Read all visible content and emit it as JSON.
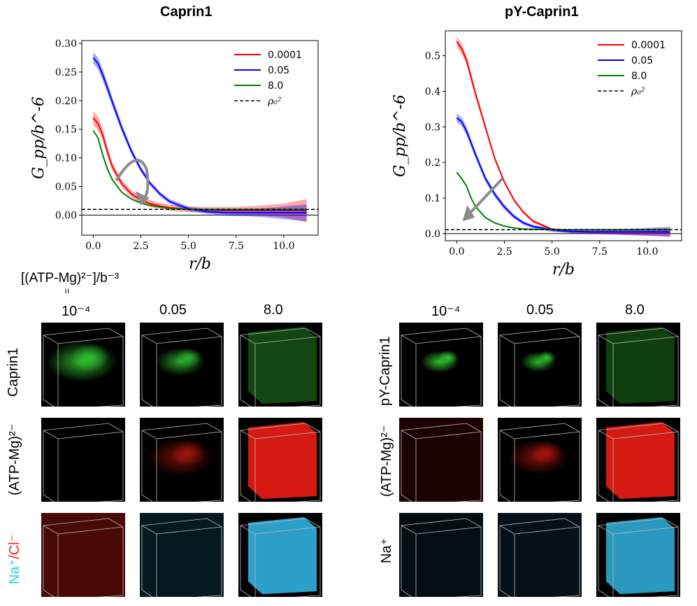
{
  "chart_data": [
    {
      "type": "line",
      "title": "Caprin1",
      "xlabel": "r/b",
      "ylabel": "G_pp/b^-6",
      "xlim": [
        -0.6,
        11.8
      ],
      "ylim": [
        -0.035,
        0.305
      ],
      "xticks": [
        "0.0",
        "2.5",
        "5.0",
        "7.5",
        "10.0"
      ],
      "xtick_values": [
        0,
        2.5,
        5,
        7.5,
        10
      ],
      "yticks": [
        "0.00",
        "0.05",
        "0.10",
        "0.15",
        "0.20",
        "0.25",
        "0.30"
      ],
      "ytick_values": [
        0,
        0.05,
        0.1,
        0.15,
        0.2,
        0.25,
        0.3
      ],
      "series": [
        {
          "name": "0.0001",
          "color": "#ff0000",
          "x": [
            0,
            0.25,
            0.5,
            0.75,
            1,
            1.5,
            2,
            2.5,
            3,
            3.5,
            4,
            5,
            6,
            7,
            8,
            9,
            10,
            11.2
          ],
          "y": [
            0.17,
            0.16,
            0.14,
            0.11,
            0.085,
            0.055,
            0.037,
            0.026,
            0.02,
            0.016,
            0.013,
            0.01,
            0.009,
            0.008,
            0.008,
            0.008,
            0.008,
            0.008
          ],
          "band": [
            0.012,
            0.012,
            0.01,
            0.008,
            0.007,
            0.006,
            0.006,
            0.006,
            0.006,
            0.005,
            0.005,
            0.005,
            0.005,
            0.006,
            0.007,
            0.009,
            0.012,
            0.02
          ]
        },
        {
          "name": "0.05",
          "color": "#0000ff",
          "x": [
            0,
            0.25,
            0.5,
            0.75,
            1,
            1.5,
            2,
            2.5,
            3,
            3.5,
            4,
            5,
            6,
            7,
            8,
            9,
            10,
            11.2
          ],
          "y": [
            0.275,
            0.265,
            0.245,
            0.222,
            0.198,
            0.152,
            0.112,
            0.08,
            0.055,
            0.037,
            0.024,
            0.011,
            0.006,
            0.004,
            0.004,
            0.004,
            0.004,
            0.004
          ],
          "band": [
            0.01,
            0.01,
            0.01,
            0.009,
            0.008,
            0.007,
            0.006,
            0.005,
            0.004,
            0.004,
            0.004,
            0.004,
            0.004,
            0.005,
            0.006,
            0.008,
            0.011,
            0.015
          ]
        },
        {
          "name": "8.0",
          "color": "#008000",
          "x": [
            0,
            0.25,
            0.5,
            0.75,
            1,
            1.5,
            2,
            2.5,
            3,
            3.5,
            4,
            5,
            6,
            7,
            8,
            9,
            10,
            11.2
          ],
          "y": [
            0.148,
            0.135,
            0.105,
            0.08,
            0.062,
            0.04,
            0.028,
            0.021,
            0.017,
            0.014,
            0.012,
            0.01,
            0.01,
            0.01,
            0.01,
            0.01,
            0.01,
            0.01
          ],
          "band": [
            0,
            0,
            0,
            0,
            0,
            0,
            0,
            0,
            0,
            0,
            0,
            0,
            0,
            0,
            0,
            0,
            0,
            0
          ]
        }
      ],
      "reference_line": {
        "name": "ρ₀²",
        "y": 0.01,
        "style": "dashed",
        "color": "#000000"
      },
      "zero_line": 0,
      "legend": {
        "position": "top-right",
        "labels": [
          "0.0001",
          "0.05",
          "8.0",
          "ρ₀²"
        ]
      },
      "annotation": "grey curved arrow (non-monotonic trend)"
    },
    {
      "type": "line",
      "title": "pY-Caprin1",
      "xlabel": "r/b",
      "ylabel": "G_pp/b^-6",
      "xlim": [
        -0.6,
        11.8
      ],
      "ylim": [
        -0.02,
        0.57
      ],
      "xticks": [
        "0.0",
        "2.5",
        "5.0",
        "7.5",
        "10.0"
      ],
      "xtick_values": [
        0,
        2.5,
        5,
        7.5,
        10
      ],
      "yticks": [
        "0.0",
        "0.1",
        "0.2",
        "0.3",
        "0.4",
        "0.5"
      ],
      "ytick_values": [
        0,
        0.1,
        0.2,
        0.3,
        0.4,
        0.5
      ],
      "series": [
        {
          "name": "0.0001",
          "color": "#ff0000",
          "x": [
            0,
            0.25,
            0.5,
            0.75,
            1,
            1.5,
            2,
            2.5,
            3,
            3.5,
            4,
            5,
            6,
            7,
            8,
            9,
            10,
            11.2
          ],
          "y": [
            0.54,
            0.52,
            0.49,
            0.44,
            0.39,
            0.3,
            0.21,
            0.145,
            0.095,
            0.06,
            0.035,
            0.012,
            0.006,
            0.004,
            0.004,
            0.004,
            0.004,
            0.004
          ],
          "band": [
            0.014,
            0.014,
            0.013,
            0.012,
            0.01,
            0.008,
            0.006,
            0.005,
            0.004,
            0.004,
            0.004,
            0.004,
            0.004,
            0.005,
            0.006,
            0.008,
            0.01,
            0.012
          ]
        },
        {
          "name": "0.05",
          "color": "#0000ff",
          "x": [
            0,
            0.25,
            0.5,
            0.75,
            1,
            1.5,
            2,
            2.5,
            3,
            3.5,
            4,
            5,
            6,
            7,
            8,
            9,
            10,
            11.2
          ],
          "y": [
            0.325,
            0.315,
            0.29,
            0.255,
            0.22,
            0.155,
            0.11,
            0.075,
            0.048,
            0.03,
            0.02,
            0.01,
            0.006,
            0.005,
            0.005,
            0.005,
            0.005,
            0.005
          ],
          "band": [
            0.012,
            0.012,
            0.012,
            0.011,
            0.01,
            0.009,
            0.008,
            0.007,
            0.006,
            0.005,
            0.005,
            0.005,
            0.005,
            0.006,
            0.007,
            0.009,
            0.011,
            0.014
          ]
        },
        {
          "name": "8.0",
          "color": "#008000",
          "x": [
            0,
            0.25,
            0.5,
            0.75,
            1,
            1.5,
            2,
            2.5,
            3,
            3.5,
            4,
            5,
            6,
            7,
            8,
            9,
            10,
            11.2
          ],
          "y": [
            0.172,
            0.155,
            0.135,
            0.1,
            0.075,
            0.045,
            0.03,
            0.021,
            0.016,
            0.013,
            0.012,
            0.011,
            0.011,
            0.011,
            0.011,
            0.011,
            0.011,
            0.011
          ],
          "band": [
            0,
            0,
            0,
            0,
            0,
            0,
            0,
            0,
            0,
            0,
            0,
            0,
            0,
            0,
            0,
            0,
            0,
            0
          ]
        }
      ],
      "reference_line": {
        "name": "ρ₀²",
        "y": 0.011,
        "style": "dashed",
        "color": "#000000"
      },
      "zero_line": 0,
      "legend": {
        "position": "top-right",
        "labels": [
          "0.0001",
          "0.05",
          "8.0",
          "ρ₀²"
        ]
      },
      "annotation": "grey straight arrow (monotonic decrease)"
    }
  ],
  "titles": {
    "left": "Caprin1",
    "right": "pY-Caprin1"
  },
  "concentration_header": {
    "text": "[(ATP-Mg)²⁻]/b⁻³",
    "equals": "="
  },
  "columns": [
    "10⁻⁴",
    "0.05",
    "8.0"
  ],
  "left_rows": {
    "row1": "Caprin1",
    "row2": "(ATP-Mg)²⁻",
    "row3_a": "Na⁺",
    "row3_b": "/",
    "row3_c": "Cl⁻"
  },
  "right_rows": {
    "row1": "pY-Caprin1",
    "row2": "(ATP-Mg)²⁻",
    "row3": "Na⁺"
  },
  "colors": {
    "protein": "#33cc33",
    "atp": "#e01b12",
    "ion_na": "#2fa9d4",
    "ion_cl": "#d01a10"
  }
}
